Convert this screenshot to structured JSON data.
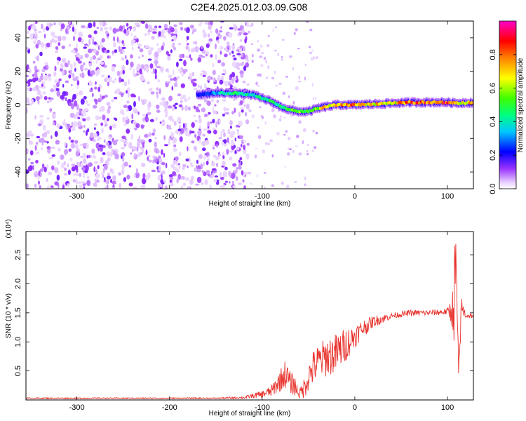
{
  "chart_data": [
    {
      "type": "heatmap",
      "title": "C2E4.2025.012.03.09.G08",
      "xlabel": "Height of straight line (km)",
      "ylabel": "Frequency (Hz)",
      "xlim": [
        -355,
        128
      ],
      "ylim": [
        -50,
        50
      ],
      "xticks": [
        -300,
        -200,
        -100,
        0,
        100
      ],
      "yticks": [
        -40,
        -20,
        0,
        20,
        40
      ],
      "grid": false,
      "colorbar": {
        "label": "Normalized spectral amplitude",
        "range": [
          0,
          1
        ],
        "ticks": [
          0.0,
          0.2,
          0.4,
          0.6,
          0.8
        ],
        "colormap": "rainbow"
      },
      "noise_region_x": [
        -355,
        -115
      ],
      "sparse_region_x": [
        -115,
        -40
      ],
      "ridge": {
        "x": [
          -170,
          -150,
          -130,
          -110,
          -100,
          -90,
          -80,
          -70,
          -60,
          -50,
          -40,
          -30,
          -20,
          -10,
          0,
          20,
          40,
          60,
          80,
          100,
          110,
          128
        ],
        "frequency": [
          6,
          7,
          7,
          6,
          4,
          2,
          -1,
          -3,
          -4,
          -4,
          -2,
          -1,
          0,
          0,
          0,
          0.5,
          1,
          1.5,
          1.5,
          1.5,
          1,
          1.5
        ],
        "amplitude": [
          0.2,
          0.35,
          0.5,
          0.4,
          0.45,
          0.5,
          0.45,
          0.55,
          0.6,
          0.5,
          0.65,
          0.75,
          0.8,
          0.8,
          0.8,
          0.75,
          0.7,
          0.85,
          0.9,
          0.85,
          0.7,
          0.8
        ]
      }
    },
    {
      "type": "line",
      "title": "",
      "xlabel": "Height of straight line (km)",
      "ylabel": "SNR (10 * v/v)",
      "y_multiplier": "(x10⁴)",
      "xlim": [
        -355,
        128
      ],
      "ylim": [
        0,
        2.9
      ],
      "xticks": [
        -300,
        -200,
        -100,
        0,
        100
      ],
      "yticks": [
        0.5,
        1.0,
        1.5,
        2.0,
        2.5
      ],
      "ytick_labels": [
        "0.5",
        "1.0",
        "1.5",
        "2.0",
        "2.5"
      ],
      "grid": false,
      "color": "#e8322c",
      "series": [
        {
          "x": [
            -355,
            -300,
            -200,
            -150,
            -120,
            -100,
            -90,
            -80,
            -75,
            -70,
            -65,
            -60,
            -55,
            -50,
            -45,
            -40,
            -30,
            -20,
            -10,
            0,
            10,
            20,
            30,
            40,
            60,
            80,
            100,
            105,
            108,
            110,
            112,
            115,
            120,
            128
          ],
          "y": [
            0.03,
            0.03,
            0.03,
            0.03,
            0.04,
            0.1,
            0.15,
            0.35,
            0.45,
            0.3,
            0.25,
            0.1,
            0.2,
            0.4,
            0.55,
            0.65,
            0.75,
            0.8,
            0.95,
            1.1,
            1.25,
            1.35,
            1.4,
            1.45,
            1.5,
            1.5,
            1.52,
            1.55,
            1.6,
            1.55,
            0.4,
            1.6,
            1.45,
            1.45
          ],
          "amplitude": [
            0.01,
            0.01,
            0.01,
            0.01,
            0.02,
            0.06,
            0.1,
            0.2,
            0.25,
            0.2,
            0.18,
            0.08,
            0.18,
            0.25,
            0.3,
            0.3,
            0.35,
            0.35,
            0.3,
            0.2,
            0.15,
            0.1,
            0.08,
            0.05,
            0.05,
            0.05,
            0.06,
            0.3,
            0.8,
            0.6,
            0.3,
            0.2,
            0.05,
            0.04
          ]
        }
      ]
    }
  ]
}
